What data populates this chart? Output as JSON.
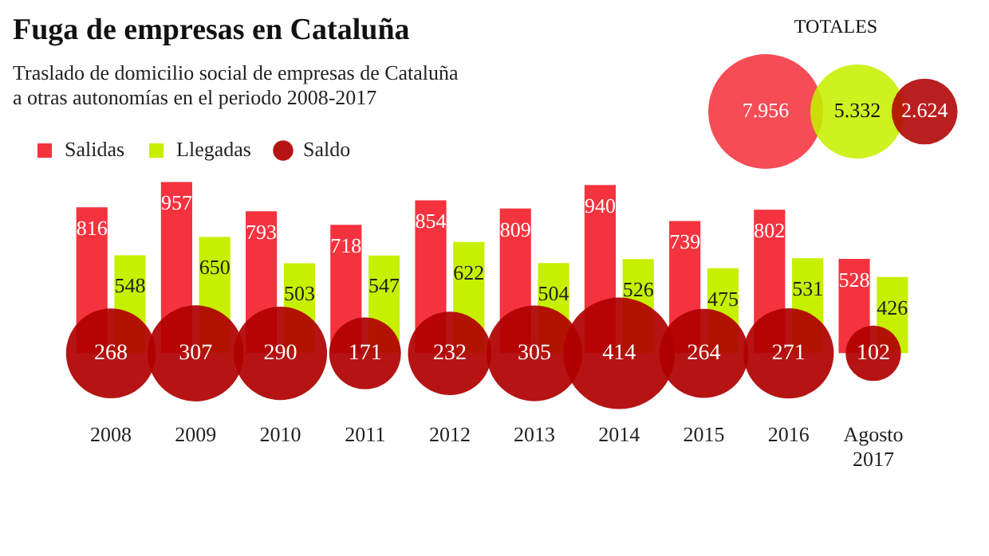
{
  "chart_data": [
    {
      "type": "bar",
      "title": "Fuga de empresas en Cataluña",
      "subtitle": "Traslado de domicilio social de empresas de Cataluña\na otras autonomías en el periodo 2008-2017",
      "categories": [
        "2008",
        "2009",
        "2010",
        "2011",
        "2012",
        "2013",
        "2014",
        "2015",
        "2016",
        "Agosto 2017"
      ],
      "series": [
        {
          "name": "Salidas",
          "color": "#f5333f",
          "values": [
            816,
            957,
            793,
            718,
            854,
            809,
            940,
            739,
            802,
            528
          ]
        },
        {
          "name": "Llegadas",
          "color": "#c6f000",
          "values": [
            548,
            650,
            503,
            547,
            622,
            504,
            526,
            475,
            531,
            426
          ]
        },
        {
          "name": "Saldo",
          "type": "bubble",
          "color": "#b00000",
          "values": [
            0,
            0,
            0,
            0,
            0,
            0,
            0,
            0,
            0,
            0
          ],
          "sizes": [
            268,
            307,
            290,
            171,
            232,
            305,
            414,
            264,
            271,
            102
          ],
          "value_labels": [
            "268",
            "307",
            "290",
            "171",
            "232",
            "305",
            "414",
            "264",
            "271",
            "102"
          ]
        }
      ],
      "data_labels": true,
      "legend": "top left"
    },
    {
      "type": "other",
      "title": "TOTALES",
      "categories": [
        null,
        null,
        null
      ],
      "values": [
        7956,
        5332,
        2624
      ],
      "value_labels": [
        "7.956",
        "5.332",
        "2.624"
      ],
      "colors": [
        "#f5333f",
        "#c6f000",
        "#b00000"
      ]
    }
  ]
}
